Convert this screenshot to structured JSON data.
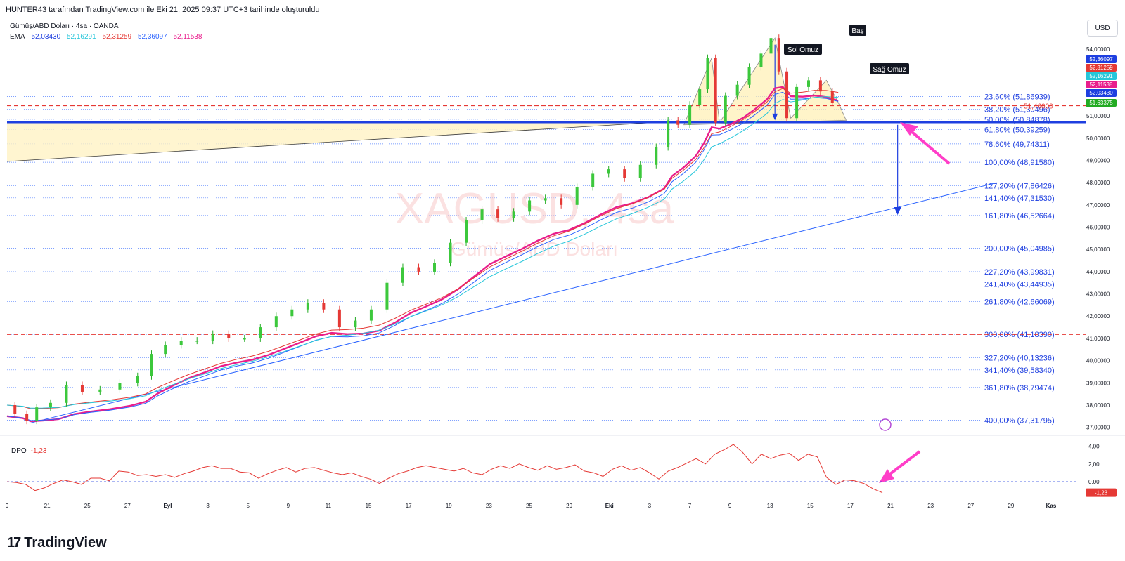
{
  "header": {
    "caption": "HUNTER43 tarafından TradingView.com ile Eki 21, 2025 09:37 UTC+3 tarihinde oluşturuldu"
  },
  "legend": {
    "symbol_line": "Gümüş/ABD Doları · 4sa · OANDA",
    "ema_label": "EMA",
    "ema_values": [
      {
        "value": "52,03430",
        "color": "#1e3fe0"
      },
      {
        "value": "52,16291",
        "color": "#26c6da"
      },
      {
        "value": "52,31259",
        "color": "#e53935"
      },
      {
        "value": "52,36097",
        "color": "#2962ff"
      },
      {
        "value": "52,11538",
        "color": "#e91e8c"
      }
    ]
  },
  "currency_button": "USD",
  "watermark": {
    "symbol": "XAGUSD, 4sa",
    "name": "Gümüş/ABD Doları"
  },
  "annotations": {
    "left_shoulder": "Sol Omuz",
    "head": "Baş",
    "right_shoulder": "Sağ Omuz"
  },
  "price_tags": [
    {
      "value": "52,36097",
      "color": "#1e3fe0"
    },
    {
      "value": "52,31259",
      "color": "#e53935"
    },
    {
      "value": "52,16291",
      "color": "#26c6da"
    },
    {
      "value": "52,11538",
      "color": "#e91e8c"
    },
    {
      "value": "52,03430",
      "color": "#1e3fe0"
    },
    {
      "value": "51,63375",
      "color": "#22ab22"
    }
  ],
  "chart_data": {
    "type": "line",
    "title": "",
    "price_axis_ticks": [
      "54,00000",
      "53,00000",
      "52,00000",
      "51,00000",
      "50,00000",
      "49,00000",
      "48,00000",
      "47,00000",
      "46,00000",
      "45,00000",
      "44,00000",
      "43,00000",
      "42,00000",
      "41,00000",
      "40,00000",
      "39,00000",
      "38,00000",
      "37,00000"
    ],
    "price_ylim": [
      36.8,
      55.2
    ],
    "time_axis_ticks": [
      "9",
      "21",
      "25",
      "27",
      "Eyl",
      "3",
      "5",
      "9",
      "11",
      "15",
      "17",
      "19",
      "23",
      "25",
      "29",
      "Eki",
      "3",
      "7",
      "9",
      "13",
      "15",
      "17",
      "21",
      "23",
      "27",
      "29",
      "Kas"
    ],
    "fib_levels": [
      {
        "label": "23,60% (51,86939)",
        "price": 51.86939
      },
      {
        "label": "38,20% (51,30496)",
        "price": 51.30496
      },
      {
        "label": "50,00% (50,84878)",
        "price": 50.84878
      },
      {
        "label": "61,80% (50,39259)",
        "price": 50.39259
      },
      {
        "label": "78,60% (49,74311)",
        "price": 49.74311
      },
      {
        "label": "100,00% (48,91580)",
        "price": 48.9158
      },
      {
        "label": "127,20% (47,86426)",
        "price": 47.86426
      },
      {
        "label": "141,40% (47,31530)",
        "price": 47.3153
      },
      {
        "label": "161,80% (46,52664)",
        "price": 46.52664
      },
      {
        "label": "200,00% (45,04985)",
        "price": 45.04985
      },
      {
        "label": "227,20% (43,99831)",
        "price": 43.99831
      },
      {
        "label": "241,40% (43,44935)",
        "price": 43.44935
      },
      {
        "label": "261,80% (42,66069)",
        "price": 42.66069
      },
      {
        "label": "300,00% (41,18390)",
        "price": 41.1839
      },
      {
        "label": "327,20% (40,13236)",
        "price": 40.13236
      },
      {
        "label": "341,40% (39,58340)",
        "price": 39.5834
      },
      {
        "label": "361,80% (38,79474)",
        "price": 38.79474
      },
      {
        "label": "400,00% (37,31795)",
        "price": 37.31795
      }
    ],
    "horizontal_lines": [
      {
        "label": "51,46000",
        "price": 51.46,
        "style": "dashed",
        "color": "#e53935"
      },
      {
        "price": 41.18,
        "style": "dashed",
        "color": "#e53935"
      },
      {
        "price": 50.72,
        "style": "solid",
        "color": "#1e3fe0"
      }
    ],
    "price_series": [
      {
        "t": 0,
        "p": 38.0
      },
      {
        "t": 8,
        "p": 37.6
      },
      {
        "t": 12,
        "p": 37.3
      },
      {
        "t": 18,
        "p": 37.9
      },
      {
        "t": 26,
        "p": 38.1
      },
      {
        "t": 34,
        "p": 38.9
      },
      {
        "t": 42,
        "p": 38.6
      },
      {
        "t": 52,
        "p": 38.7
      },
      {
        "t": 62,
        "p": 39.0
      },
      {
        "t": 70,
        "p": 39.3
      },
      {
        "t": 76,
        "p": 40.3
      },
      {
        "t": 84,
        "p": 40.7
      },
      {
        "t": 92,
        "p": 40.9
      },
      {
        "t": 100,
        "p": 40.9
      },
      {
        "t": 108,
        "p": 41.2
      },
      {
        "t": 116,
        "p": 41.0
      },
      {
        "t": 124,
        "p": 41.0
      },
      {
        "t": 132,
        "p": 41.5
      },
      {
        "t": 140,
        "p": 42.0
      },
      {
        "t": 148,
        "p": 42.3
      },
      {
        "t": 156,
        "p": 42.6
      },
      {
        "t": 164,
        "p": 42.3
      },
      {
        "t": 172,
        "p": 41.5
      },
      {
        "t": 180,
        "p": 41.8
      },
      {
        "t": 188,
        "p": 42.3
      },
      {
        "t": 196,
        "p": 43.5
      },
      {
        "t": 204,
        "p": 44.2
      },
      {
        "t": 212,
        "p": 44.0
      },
      {
        "t": 220,
        "p": 44.4
      },
      {
        "t": 228,
        "p": 45.3
      },
      {
        "t": 236,
        "p": 46.3
      },
      {
        "t": 244,
        "p": 46.8
      },
      {
        "t": 252,
        "p": 46.4
      },
      {
        "t": 260,
        "p": 46.7
      },
      {
        "t": 268,
        "p": 47.2
      },
      {
        "t": 276,
        "p": 47.3
      },
      {
        "t": 284,
        "p": 47.0
      },
      {
        "t": 292,
        "p": 47.8
      },
      {
        "t": 300,
        "p": 48.4
      },
      {
        "t": 308,
        "p": 48.6
      },
      {
        "t": 316,
        "p": 48.2
      },
      {
        "t": 324,
        "p": 48.8
      },
      {
        "t": 332,
        "p": 49.6
      },
      {
        "t": 336,
        "p": 50.8
      },
      {
        "t": 342,
        "p": 50.6
      },
      {
        "t": 348,
        "p": 51.5
      },
      {
        "t": 352,
        "p": 52.2
      },
      {
        "t": 356,
        "p": 53.6
      },
      {
        "t": 360,
        "p": 50.7
      },
      {
        "t": 366,
        "p": 51.9
      },
      {
        "t": 372,
        "p": 52.4
      },
      {
        "t": 378,
        "p": 53.2
      },
      {
        "t": 384,
        "p": 53.8
      },
      {
        "t": 388,
        "p": 54.5
      },
      {
        "t": 392,
        "p": 53.0
      },
      {
        "t": 396,
        "p": 50.9
      },
      {
        "t": 402,
        "p": 52.3
      },
      {
        "t": 408,
        "p": 52.6
      },
      {
        "t": 414,
        "p": 52.1
      },
      {
        "t": 420,
        "p": 51.6
      }
    ],
    "ema_series": [
      {
        "color": "#e91e8c",
        "width": 2.4,
        "offset": -1.0
      },
      {
        "color": "#2962ff",
        "width": 1,
        "offset": -0.6
      },
      {
        "color": "#e53935",
        "width": 1,
        "offset": -0.35
      },
      {
        "color": "#26c6da",
        "width": 1,
        "offset": -0.15
      }
    ],
    "trend_line": {
      "from": {
        "t": 12,
        "p": 37.2
      },
      "to": {
        "t": 500,
        "p": 48.0
      },
      "color": "#2962ff"
    },
    "projection_target": "161,80% (46,52664)",
    "dpo": {
      "label": "DPO",
      "value": "-1,23",
      "value_color": "#e53935",
      "axis_ticks": [
        "4,00",
        "2,00",
        "0,00"
      ],
      "ylim": [
        -1.5,
        4.6
      ],
      "values": [
        0.0,
        -0.1,
        -0.3,
        -1.0,
        -0.7,
        -0.2,
        0.2,
        0.0,
        -0.3,
        0.4,
        0.4,
        0.1,
        1.2,
        1.1,
        0.7,
        0.8,
        0.6,
        0.8,
        0.5,
        0.9,
        1.2,
        1.6,
        1.8,
        1.5,
        1.5,
        1.1,
        1.0,
        0.4,
        0.9,
        1.3,
        1.6,
        1.1,
        1.5,
        1.6,
        1.3,
        1.0,
        0.8,
        1.0,
        0.6,
        0.3,
        -0.2,
        0.4,
        0.9,
        1.2,
        1.6,
        1.8,
        1.6,
        1.4,
        1.2,
        1.5,
        1.0,
        0.8,
        1.4,
        1.8,
        1.5,
        2.0,
        1.6,
        1.3,
        1.8,
        1.4,
        1.6,
        1.9,
        1.2,
        1.0,
        0.6,
        1.4,
        1.8,
        1.3,
        1.6,
        1.0,
        0.3,
        1.2,
        1.6,
        2.1,
        2.6,
        2.0,
        3.1,
        3.6,
        4.2,
        3.3,
        2.0,
        3.1,
        2.6,
        3.0,
        3.2,
        2.4,
        3.1,
        2.8,
        0.5,
        -0.3,
        0.2,
        0.1,
        -0.2,
        -0.8,
        -1.23
      ]
    }
  }
}
